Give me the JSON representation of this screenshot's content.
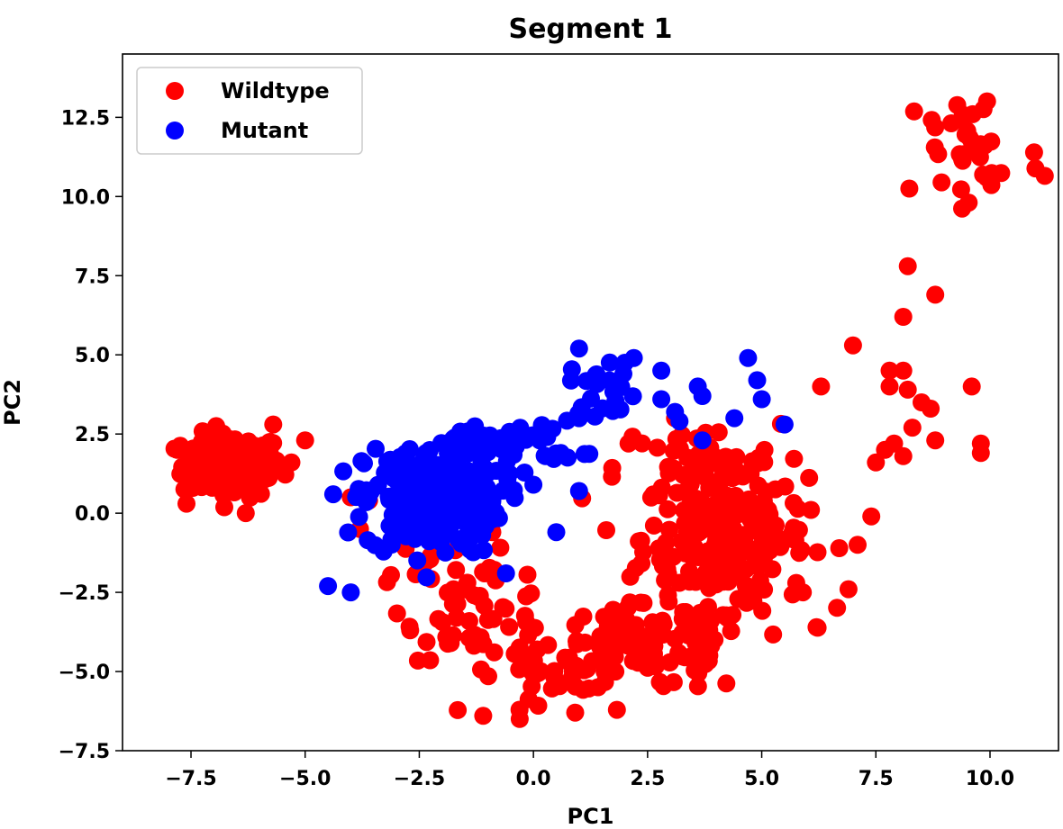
{
  "chart_data": {
    "type": "scatter",
    "title": "Segment 1",
    "xlabel": "PC1",
    "ylabel": "PC2",
    "xlim": [
      -9.0,
      11.5
    ],
    "ylim": [
      -7.5,
      14.5
    ],
    "xticks": [
      -7.5,
      -5.0,
      -2.5,
      0.0,
      2.5,
      5.0,
      7.5,
      10.0
    ],
    "xtick_labels": [
      "−7.5",
      "−5.0",
      "−2.5",
      "0.0",
      "2.5",
      "5.0",
      "7.5",
      "10.0"
    ],
    "yticks": [
      -7.5,
      -5.0,
      -2.5,
      0.0,
      2.5,
      5.0,
      7.5,
      10.0,
      12.5
    ],
    "ytick_labels": [
      "−7.5",
      "−5.0",
      "−2.5",
      "0.0",
      "2.5",
      "5.0",
      "7.5",
      "10.0",
      "12.5"
    ],
    "grid": false,
    "legend_position": "top-left",
    "series": [
      {
        "name": "Wildtype",
        "color": "#ff0000",
        "clusters": [
          {
            "cx": -6.6,
            "cy": 1.5,
            "sx": 0.55,
            "sy": 0.5,
            "n": 150
          },
          {
            "cx": 4.2,
            "cy": -0.8,
            "sx": 0.9,
            "sy": 1.1,
            "n": 210
          },
          {
            "cx": 2.6,
            "cy": -4.3,
            "sx": 1.1,
            "sy": 0.7,
            "n": 110
          },
          {
            "cx": -1.2,
            "cy": -3.0,
            "sx": 0.8,
            "sy": 0.8,
            "n": 55
          },
          {
            "cx": 0.4,
            "cy": -5.2,
            "sx": 0.6,
            "sy": 0.6,
            "n": 30
          },
          {
            "cx": 3.6,
            "cy": 1.4,
            "sx": 0.9,
            "sy": 0.7,
            "n": 50
          },
          {
            "cx": 9.6,
            "cy": 11.4,
            "sx": 0.8,
            "sy": 1.2,
            "n": 38
          },
          {
            "cx": -2.5,
            "cy": -0.9,
            "sx": 0.5,
            "sy": 0.8,
            "n": 14
          }
        ],
        "points": [
          [
            8.2,
            7.8
          ],
          [
            8.8,
            6.9
          ],
          [
            8.1,
            6.2
          ],
          [
            7.0,
            5.3
          ],
          [
            7.8,
            4.5
          ],
          [
            8.1,
            4.5
          ],
          [
            7.8,
            4.0
          ],
          [
            8.2,
            3.9
          ],
          [
            8.5,
            3.5
          ],
          [
            8.7,
            3.3
          ],
          [
            9.6,
            4.0
          ],
          [
            8.3,
            2.7
          ],
          [
            8.8,
            2.3
          ],
          [
            9.8,
            2.2
          ],
          [
            9.8,
            1.9
          ],
          [
            7.7,
            2.0
          ],
          [
            8.1,
            1.8
          ],
          [
            7.5,
            1.6
          ],
          [
            7.9,
            2.2
          ],
          [
            7.4,
            -0.1
          ],
          [
            6.3,
            4.0
          ],
          [
            3.1,
            3.0
          ],
          [
            -1.1,
            -6.4
          ],
          [
            -0.3,
            -6.5
          ],
          [
            -2.7,
            -3.7
          ],
          [
            -2.5,
            0.9
          ],
          [
            -4.0,
            0.5
          ],
          [
            -3.6,
            0.4
          ],
          [
            -2.4,
            0.2
          ],
          [
            -0.9,
            -0.6
          ],
          [
            -3.8,
            -0.5
          ],
          [
            -5.7,
            2.8
          ],
          [
            -5.0,
            2.3
          ],
          [
            -7.8,
            2.0
          ],
          [
            -7.6,
            0.3
          ],
          [
            -6.3,
            0.0
          ],
          [
            -5.3,
            1.6
          ],
          [
            7.1,
            -1.0
          ],
          [
            6.9,
            -2.4
          ],
          [
            6.2,
            -3.6
          ],
          [
            5.9,
            -2.5
          ]
        ]
      },
      {
        "name": "Mutant",
        "color": "#0000ff",
        "clusters": [
          {
            "cx": -2.2,
            "cy": 0.4,
            "sx": 0.75,
            "sy": 0.85,
            "n": 230
          },
          {
            "cx": -0.6,
            "cy": 2.2,
            "sx": 0.8,
            "sy": 0.35,
            "n": 55
          },
          {
            "cx": 1.6,
            "cy": 4.0,
            "sx": 0.4,
            "sy": 0.45,
            "n": 22
          }
        ],
        "points": [
          [
            -4.5,
            -2.3
          ],
          [
            -4.0,
            -2.5
          ],
          [
            -0.6,
            -1.9
          ],
          [
            0.5,
            -0.6
          ],
          [
            1.0,
            0.7
          ],
          [
            0.0,
            0.9
          ],
          [
            0.6,
            1.9
          ],
          [
            1.0,
            3.0
          ],
          [
            1.0,
            5.2
          ],
          [
            2.2,
            4.9
          ],
          [
            2.8,
            4.5
          ],
          [
            3.6,
            4.0
          ],
          [
            3.7,
            3.7
          ],
          [
            2.8,
            3.6
          ],
          [
            3.1,
            3.2
          ],
          [
            4.7,
            4.9
          ],
          [
            4.9,
            4.2
          ],
          [
            5.0,
            3.6
          ],
          [
            4.4,
            3.0
          ],
          [
            5.5,
            2.8
          ],
          [
            3.7,
            2.3
          ],
          [
            3.2,
            2.9
          ]
        ]
      }
    ]
  }
}
